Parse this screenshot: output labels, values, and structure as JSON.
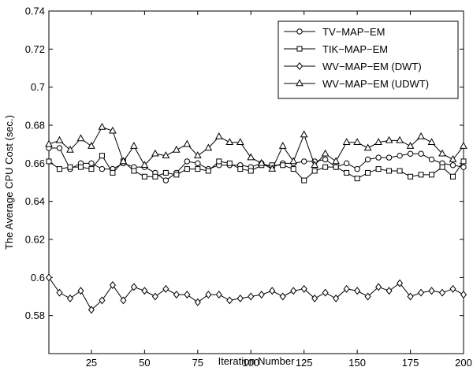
{
  "chart_data": {
    "type": "line",
    "title": "",
    "xlabel": "Iteration Number",
    "ylabel": "The Average CPU Cost (sec.)",
    "xlim": [
      5,
      200
    ],
    "ylim": [
      0.56,
      0.74
    ],
    "x_ticks": [
      25,
      50,
      75,
      100,
      125,
      150,
      175,
      200
    ],
    "x_tick_labels": [
      "25",
      "50",
      "75",
      "100",
      "125",
      "150",
      "175",
      "200"
    ],
    "y_ticks": [
      0.58,
      0.6,
      0.62,
      0.64,
      0.66,
      0.68,
      0.7,
      0.72,
      0.74
    ],
    "y_tick_labels": [
      "0.58",
      "0.6",
      "0.62",
      "0.64",
      "0.66",
      "0.68",
      "0.7",
      "0.72",
      "0.74"
    ],
    "grid": false,
    "legend_position": "top-right",
    "x": [
      5,
      10,
      15,
      20,
      25,
      30,
      35,
      40,
      45,
      50,
      55,
      60,
      65,
      70,
      75,
      80,
      85,
      90,
      95,
      100,
      105,
      110,
      115,
      120,
      125,
      130,
      135,
      140,
      145,
      150,
      155,
      160,
      165,
      170,
      175,
      180,
      185,
      190,
      195,
      200
    ],
    "series": [
      {
        "name": "TV−MAP−EM",
        "marker": "circle",
        "values": [
          0.668,
          0.668,
          0.657,
          0.66,
          0.66,
          0.657,
          0.657,
          0.66,
          0.658,
          0.658,
          0.655,
          0.651,
          0.655,
          0.661,
          0.66,
          0.657,
          0.659,
          0.659,
          0.659,
          0.658,
          0.66,
          0.658,
          0.66,
          0.66,
          0.661,
          0.661,
          0.662,
          0.658,
          0.66,
          0.657,
          0.662,
          0.663,
          0.663,
          0.664,
          0.665,
          0.665,
          0.662,
          0.66,
          0.659,
          0.658
        ]
      },
      {
        "name": "TIK−MAP−EM",
        "marker": "square",
        "values": [
          0.661,
          0.657,
          0.658,
          0.658,
          0.657,
          0.664,
          0.655,
          0.661,
          0.656,
          0.653,
          0.653,
          0.655,
          0.654,
          0.657,
          0.657,
          0.656,
          0.661,
          0.66,
          0.657,
          0.656,
          0.659,
          0.659,
          0.659,
          0.657,
          0.651,
          0.656,
          0.658,
          0.658,
          0.655,
          0.652,
          0.655,
          0.657,
          0.656,
          0.656,
          0.653,
          0.654,
          0.654,
          0.658,
          0.653,
          0.661
        ]
      },
      {
        "name": "WV−MAP−EM (DWT)",
        "marker": "diamond",
        "values": [
          0.6,
          0.592,
          0.589,
          0.593,
          0.583,
          0.588,
          0.596,
          0.588,
          0.595,
          0.593,
          0.59,
          0.594,
          0.591,
          0.591,
          0.587,
          0.591,
          0.591,
          0.588,
          0.589,
          0.59,
          0.591,
          0.593,
          0.59,
          0.593,
          0.594,
          0.589,
          0.592,
          0.589,
          0.594,
          0.593,
          0.59,
          0.595,
          0.593,
          0.597,
          0.59,
          0.592,
          0.593,
          0.592,
          0.594,
          0.591
        ]
      },
      {
        "name": "WV−MAP−EM (UDWT)",
        "marker": "triangle",
        "values": [
          0.67,
          0.672,
          0.667,
          0.673,
          0.669,
          0.679,
          0.677,
          0.661,
          0.669,
          0.659,
          0.665,
          0.664,
          0.667,
          0.67,
          0.664,
          0.668,
          0.674,
          0.671,
          0.671,
          0.663,
          0.66,
          0.657,
          0.669,
          0.661,
          0.675,
          0.659,
          0.665,
          0.661,
          0.671,
          0.671,
          0.668,
          0.671,
          0.672,
          0.672,
          0.669,
          0.674,
          0.671,
          0.665,
          0.662,
          0.669
        ]
      }
    ]
  }
}
